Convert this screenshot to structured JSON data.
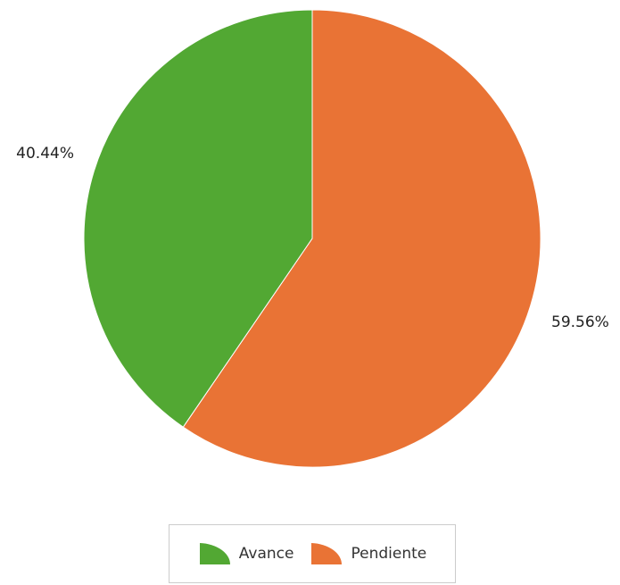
{
  "chart_data": {
    "type": "pie",
    "title": "",
    "slices": [
      {
        "name": "Avance",
        "value": 40.44,
        "label": "40.44%",
        "color": "#52a833"
      },
      {
        "name": "Pendiente",
        "value": 59.56,
        "label": "59.56%",
        "color": "#e97335"
      }
    ],
    "legend_position": "bottom"
  }
}
